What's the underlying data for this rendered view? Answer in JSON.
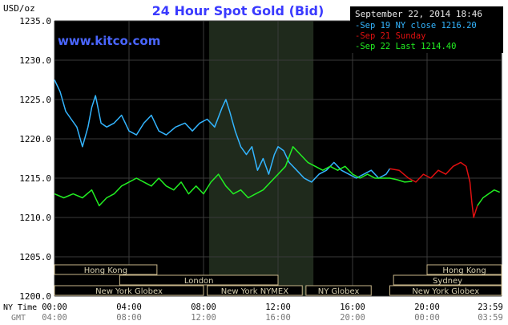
{
  "chart_data": {
    "type": "line",
    "title": "24 Hour Spot Gold (Bid)",
    "watermark": "www.kitco.com",
    "date": "September 22, 2014 18:46",
    "ylabel": "USD/oz",
    "ylim": [
      1200,
      1235
    ],
    "ytick_labels": [
      "1235.0",
      "1230.0",
      "1225.0",
      "1220.0",
      "1215.0",
      "1210.0",
      "1205.0",
      "1200.0"
    ],
    "y_ticks": [
      1235,
      1230,
      1225,
      1220,
      1215,
      1210,
      1205,
      1200
    ],
    "xlim": [
      0,
      24
    ],
    "x_ticks_ny": [
      0,
      4,
      8,
      12,
      16,
      20,
      24
    ],
    "ny_time_label": "NY Time",
    "gmt_label": "GMT",
    "ny_tick_labels": [
      "00:00",
      "04:00",
      "08:00",
      "12:00",
      "16:00",
      "20:00",
      "23:59"
    ],
    "gmt_tick_labels": [
      "04:00",
      "08:00",
      "12:00",
      "16:00",
      "20:00",
      "00:00",
      "03:59"
    ],
    "grid": true,
    "legend_position": "top-right",
    "colors": {
      "background": "#000000",
      "grid": "#3a3a3a",
      "shade": "#1f2a1c",
      "sep19": "#33b5ff",
      "sep21": "#e01010",
      "sep22": "#22ee22",
      "title": "#3a3aff",
      "watermark": "#4a66ff",
      "bar_fill": "#000000",
      "bar_stroke": "#c8b68a",
      "bar_text": "#d8d0b0"
    },
    "shaded_region": [
      8.3,
      13.9
    ],
    "series": [
      {
        "name": "Sep 19 NY close 1216.20",
        "color": "#33b5ff",
        "x": [
          0,
          0.3,
          0.6,
          0.9,
          1.2,
          1.5,
          1.8,
          2.0,
          2.2,
          2.5,
          2.8,
          3.2,
          3.6,
          4.0,
          4.4,
          4.8,
          5.2,
          5.6,
          6.0,
          6.5,
          7.0,
          7.4,
          7.8,
          8.2,
          8.6,
          9.0,
          9.2,
          9.4,
          9.7,
          10.0,
          10.3,
          10.6,
          10.9,
          11.2,
          11.5,
          11.8,
          12.0,
          12.3,
          12.6,
          13.0,
          13.4,
          13.8,
          14.2,
          14.6,
          15.0,
          15.4,
          15.8,
          16.2,
          16.6,
          17.0,
          17.4,
          17.8,
          18.0
        ],
        "y": [
          1227.5,
          1226.0,
          1223.5,
          1222.5,
          1221.5,
          1219.0,
          1221.5,
          1224.0,
          1225.5,
          1222.0,
          1221.5,
          1222.0,
          1223.0,
          1221.0,
          1220.5,
          1222.0,
          1223.0,
          1221.0,
          1220.5,
          1221.5,
          1222.0,
          1221.0,
          1222.0,
          1222.5,
          1221.5,
          1224.0,
          1225.0,
          1223.5,
          1221.0,
          1219.0,
          1218.0,
          1219.0,
          1216.0,
          1217.5,
          1215.5,
          1218.0,
          1219.0,
          1218.5,
          1217.0,
          1216.0,
          1215.0,
          1214.5,
          1215.5,
          1216.0,
          1217.0,
          1216.0,
          1215.5,
          1215.0,
          1215.5,
          1216.0,
          1215.0,
          1215.5,
          1216.2
        ]
      },
      {
        "name": "Sep 21 Sunday",
        "color": "#e01010",
        "x": [
          18.0,
          18.5,
          19.0,
          19.4,
          19.8,
          20.2,
          20.6,
          21.0,
          21.4,
          21.8,
          22.1,
          22.3,
          22.4,
          22.5,
          22.7
        ],
        "y": [
          1216.2,
          1216.0,
          1215.0,
          1214.5,
          1215.5,
          1215.0,
          1216.0,
          1215.5,
          1216.5,
          1217.0,
          1216.5,
          1214.5,
          1212.0,
          1210.0,
          1211.5
        ]
      },
      {
        "name": "Sep 22 Last 1214.40",
        "color": "#22ee22",
        "x": [
          0,
          0.5,
          1.0,
          1.5,
          2.0,
          2.4,
          2.8,
          3.2,
          3.6,
          4.0,
          4.4,
          4.8,
          5.2,
          5.6,
          6.0,
          6.4,
          6.8,
          7.2,
          7.6,
          8.0,
          8.4,
          8.8,
          9.2,
          9.6,
          10.0,
          10.4,
          10.8,
          11.2,
          11.6,
          12.0,
          12.4,
          12.8,
          13.2,
          13.6,
          14.0,
          14.4,
          14.8,
          15.2,
          15.6,
          16.0,
          16.4,
          16.8,
          17.2,
          17.6,
          18.0,
          18.4,
          18.8,
          19.2,
          22.7,
          23.0,
          23.3,
          23.6,
          23.9
        ],
        "y": [
          1213.0,
          1212.5,
          1213.0,
          1212.5,
          1213.5,
          1211.5,
          1212.5,
          1213.0,
          1214.0,
          1214.5,
          1215.0,
          1214.5,
          1214.0,
          1215.0,
          1214.0,
          1213.5,
          1214.5,
          1213.0,
          1214.0,
          1213.0,
          1214.5,
          1215.5,
          1214.0,
          1213.0,
          1213.5,
          1212.5,
          1213.0,
          1213.5,
          1214.5,
          1215.5,
          1216.5,
          1219.0,
          1218.0,
          1217.0,
          1216.5,
          1216.0,
          1216.5,
          1216.0,
          1216.5,
          1215.5,
          1215.0,
          1215.5,
          1215.0,
          1215.0,
          1215.0,
          1214.8,
          1214.5,
          1214.6,
          1211.5,
          1212.5,
          1213.0,
          1213.5,
          1213.2
        ]
      }
    ],
    "market_sessions": [
      {
        "label": "Hong Kong",
        "start": 0,
        "end": 5.5,
        "row": 0
      },
      {
        "label": "Hong Kong",
        "start": 20.0,
        "end": 24.0,
        "row": 0
      },
      {
        "label": "London",
        "start": 3.5,
        "end": 12.0,
        "row": 1
      },
      {
        "label": "Sydney",
        "start": 18.2,
        "end": 24.0,
        "row": 1
      },
      {
        "label": "New York Globex",
        "start": 0,
        "end": 8.0,
        "row": 2
      },
      {
        "label": "New York NYMEX",
        "start": 8.2,
        "end": 13.3,
        "row": 2
      },
      {
        "label": "NY Globex",
        "start": 13.5,
        "end": 17.0,
        "row": 2
      },
      {
        "label": "New York Globex",
        "start": 18.0,
        "end": 24.0,
        "row": 2
      }
    ]
  }
}
